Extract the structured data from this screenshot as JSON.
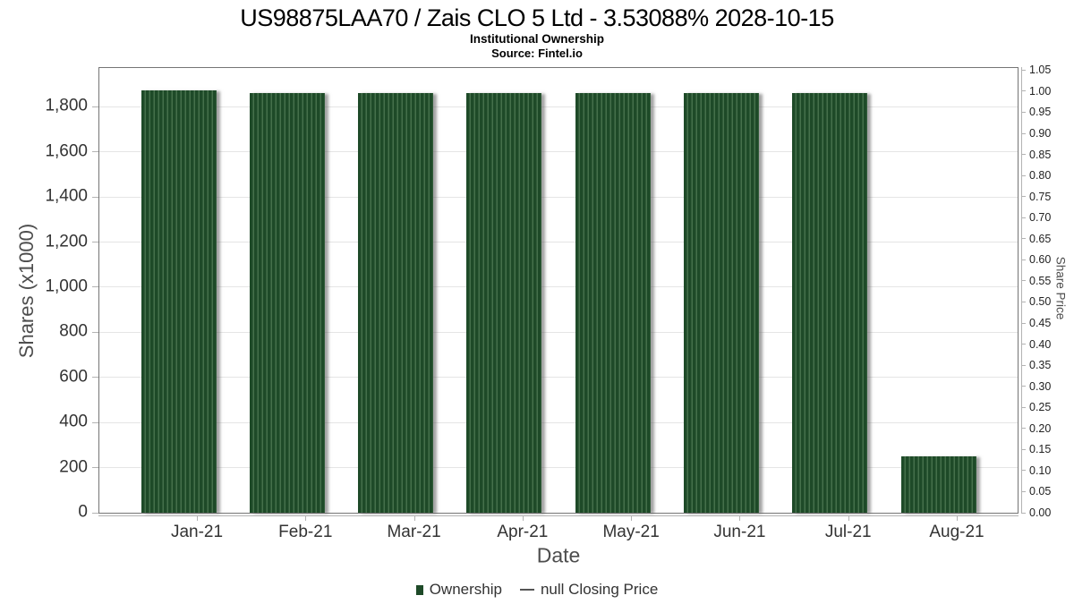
{
  "chart_data": {
    "type": "bar",
    "title": "US98875LAA70 / Zais CLO 5 Ltd - 3.53088% 2028-10-15",
    "subtitle": "Institutional Ownership",
    "source": "Source: Fintel.io",
    "xlabel": "Date",
    "ylabel_left": "Shares (x1000)",
    "ylabel_right": "Share Price",
    "categories": [
      "Jan-21",
      "Feb-21",
      "Mar-21",
      "Apr-21",
      "May-21",
      "Jun-21",
      "Jul-21",
      "Aug-21"
    ],
    "series": [
      {
        "name": "Ownership",
        "type": "bar",
        "values": [
          1872,
          1860,
          1860,
          1860,
          1860,
          1860,
          1860,
          250
        ],
        "units": "shares x1000"
      },
      {
        "name": "null Closing Price",
        "type": "line",
        "values": []
      }
    ],
    "ylim_left": [
      0,
      1972
    ],
    "yticks_left": [
      {
        "value": 0,
        "label": "0"
      },
      {
        "value": 200,
        "label": "200"
      },
      {
        "value": 400,
        "label": "400"
      },
      {
        "value": 600,
        "label": "600"
      },
      {
        "value": 800,
        "label": "800"
      },
      {
        "value": 1000,
        "label": "1,000"
      },
      {
        "value": 1200,
        "label": "1,200"
      },
      {
        "value": 1400,
        "label": "1,400"
      },
      {
        "value": 1600,
        "label": "1,600"
      },
      {
        "value": 1800,
        "label": "1,800"
      }
    ],
    "ylim_right": [
      0,
      1.055
    ],
    "yticks_right": [
      "0.00",
      "0.05",
      "0.10",
      "0.15",
      "0.20",
      "0.25",
      "0.30",
      "0.35",
      "0.40",
      "0.45",
      "0.50",
      "0.55",
      "0.60",
      "0.65",
      "0.70",
      "0.75",
      "0.80",
      "0.85",
      "0.90",
      "0.95",
      "1.00",
      "1.05"
    ],
    "grid": "horizontal gridlines at left-axis ticks",
    "legend_position": "bottom-center",
    "colors": {
      "bar_fill": "#1e4a28",
      "bar_stripe": "#45704b",
      "bar_shadow": "rgba(90,90,90,0.55)",
      "line_legend_dash": "#555555",
      "gridline": "#e5e5e5",
      "plot_border": "#757575",
      "tick_mark": "#b3b3b3",
      "tick_label": "#333333",
      "right_tick_label": "#222222",
      "axis_title": "#4d4d4d",
      "title": "#000000",
      "background": "#ffffff"
    }
  },
  "legend": {
    "items": [
      {
        "label": "Ownership",
        "marker": "square"
      },
      {
        "label": "null Closing Price",
        "marker": "dash"
      }
    ]
  }
}
